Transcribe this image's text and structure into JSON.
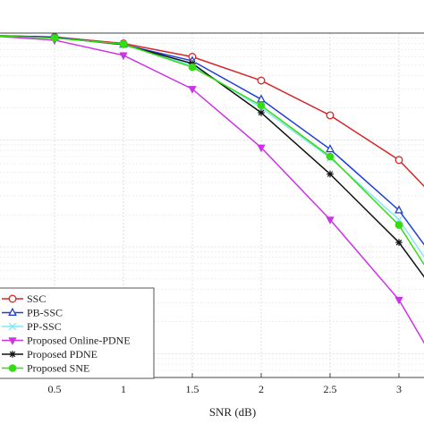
{
  "chart_data": {
    "type": "line",
    "title": "",
    "xlabel": "SNR (dB)",
    "ylabel": "",
    "xlim": [
      0,
      3.2
    ],
    "ylog": true,
    "x_ticks": [
      "0.5",
      "1",
      "1.5",
      "2",
      "2.5",
      "3"
    ],
    "x_tick_values": [
      0.5,
      1,
      1.5,
      2,
      2.5,
      3
    ],
    "grid": true,
    "legend_position": "bottom-left",
    "series": [
      {
        "name": "SSC",
        "color": "#d62728",
        "marker": "circle",
        "x": [
          0,
          0.5,
          1,
          1.5,
          2,
          2.5,
          3,
          3.25
        ],
        "y": [
          0.95,
          0.92,
          0.8,
          0.6,
          0.36,
          0.17,
          0.065,
          0.03
        ]
      },
      {
        "name": "PB-SSC",
        "color": "#1f3fd6",
        "marker": "triangle-up",
        "x": [
          0,
          0.5,
          1,
          1.5,
          2,
          2.5,
          3,
          3.25
        ],
        "y": [
          0.95,
          0.92,
          0.78,
          0.55,
          0.24,
          0.082,
          0.022,
          0.008
        ]
      },
      {
        "name": "PP-SSC",
        "color": "#7fe7f5",
        "marker": "x",
        "x": [
          0,
          0.5,
          1,
          1.5,
          2,
          2.5,
          3,
          3.25
        ],
        "y": [
          0.95,
          0.91,
          0.78,
          0.5,
          0.2,
          0.068,
          0.018,
          0.006
        ]
      },
      {
        "name": "Proposed Online-PDNE",
        "color": "#cc33e6",
        "marker": "triangle-down",
        "x": [
          0,
          0.5,
          1,
          1.5,
          2,
          2.5,
          3,
          3.25
        ],
        "y": [
          0.95,
          0.86,
          0.62,
          0.3,
          0.085,
          0.018,
          0.0032,
          0.0009
        ]
      },
      {
        "name": "Proposed PDNE",
        "color": "#111111",
        "marker": "asterisk",
        "x": [
          0,
          0.5,
          1,
          1.5,
          2,
          2.5,
          3,
          3.25
        ],
        "y": [
          0.95,
          0.91,
          0.78,
          0.52,
          0.18,
          0.048,
          0.011,
          0.004
        ]
      },
      {
        "name": "Proposed SNE",
        "color": "#33dd11",
        "marker": "circle-filled",
        "x": [
          0,
          0.5,
          1,
          1.5,
          2,
          2.5,
          3,
          3.25
        ],
        "y": [
          0.95,
          0.9,
          0.79,
          0.48,
          0.21,
          0.07,
          0.016,
          0.005
        ]
      }
    ]
  }
}
